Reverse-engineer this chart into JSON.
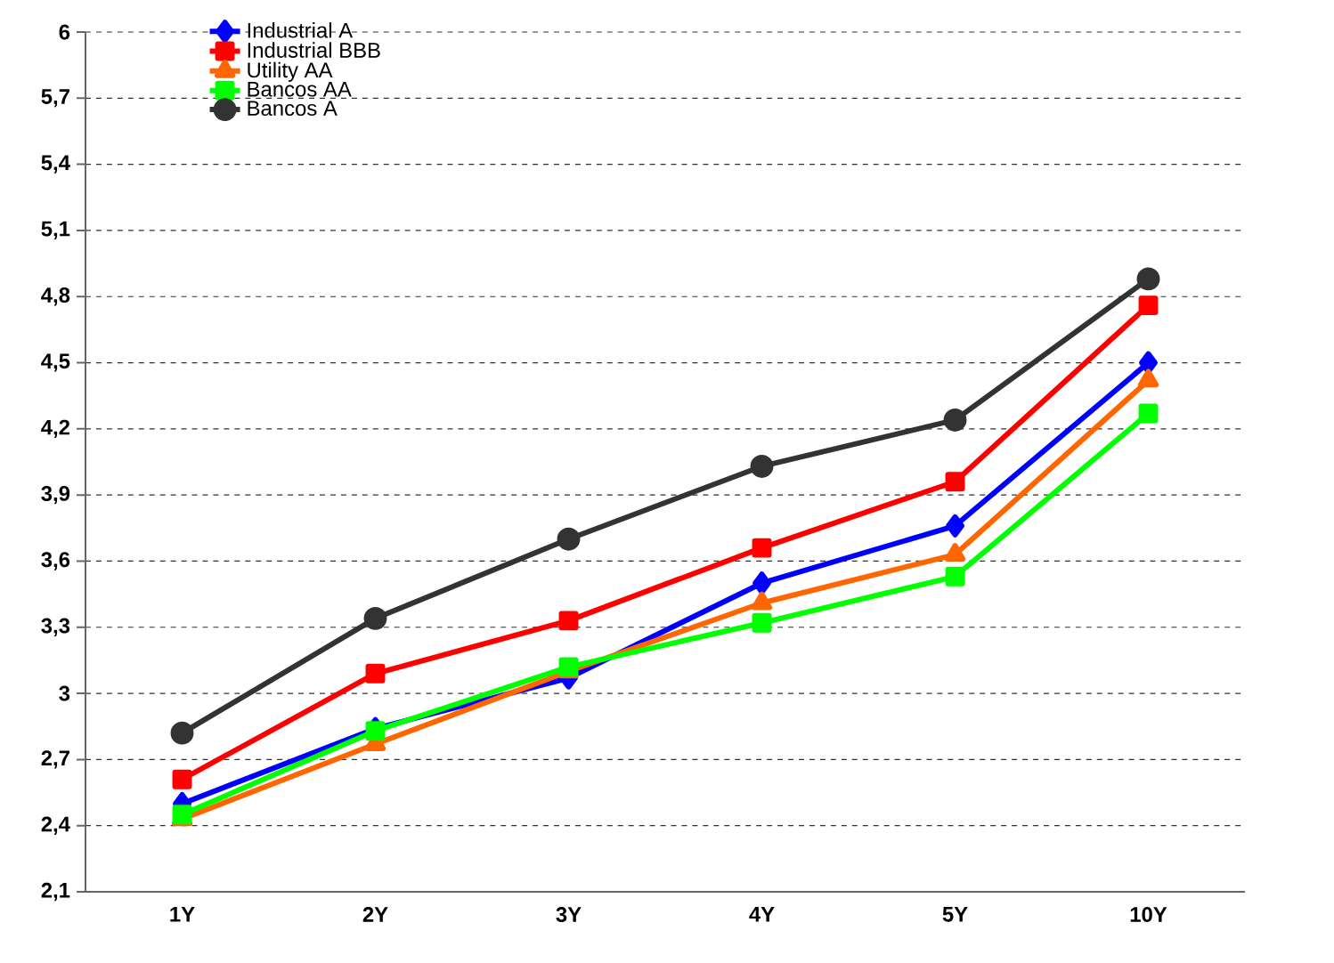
{
  "chart_data": {
    "type": "line",
    "categories": [
      "1Y",
      "2Y",
      "3Y",
      "4Y",
      "5Y",
      "10Y"
    ],
    "series": [
      {
        "name": "Industrial A",
        "color": "#0000ff",
        "marker": "diamond",
        "values": [
          2.5,
          2.84,
          3.07,
          3.5,
          3.76,
          4.5
        ]
      },
      {
        "name": "Industrial BBB",
        "color": "#ff0000",
        "marker": "square",
        "values": [
          2.61,
          3.09,
          3.33,
          3.66,
          3.96,
          4.76
        ]
      },
      {
        "name": "Utility AA",
        "color": "#ff6600",
        "marker": "triangle",
        "values": [
          2.43,
          2.77,
          3.1,
          3.41,
          3.63,
          4.42
        ]
      },
      {
        "name": "Bancos AA",
        "color": "#00ff00",
        "marker": "square",
        "values": [
          2.45,
          2.83,
          3.12,
          3.32,
          3.53,
          4.27
        ]
      },
      {
        "name": "Bancos A",
        "color": "#333333",
        "marker": "circle",
        "values": [
          2.82,
          3.34,
          3.7,
          4.03,
          4.24,
          4.88
        ]
      }
    ],
    "ylim": [
      2.1,
      6
    ],
    "yticks": [
      {
        "value": 2.1,
        "label": "2,1"
      },
      {
        "value": 2.4,
        "label": "2,4"
      },
      {
        "value": 2.7,
        "label": "2,7"
      },
      3,
      {
        "value": 3.3,
        "label": "3,3"
      },
      {
        "value": 3.6,
        "label": "3,6"
      },
      {
        "value": 3.9,
        "label": "3,9"
      },
      {
        "value": 4.2,
        "label": "4,2"
      },
      {
        "value": 4.5,
        "label": "4,5"
      },
      {
        "value": 4.8,
        "label": "4,8"
      },
      {
        "value": 5.1,
        "label": "5,1"
      },
      {
        "value": 5.4,
        "label": "5,4"
      },
      {
        "value": 5.7,
        "label": "5,7"
      },
      6
    ],
    "grid": "y",
    "legend": "top left",
    "line_style": "solid"
  }
}
